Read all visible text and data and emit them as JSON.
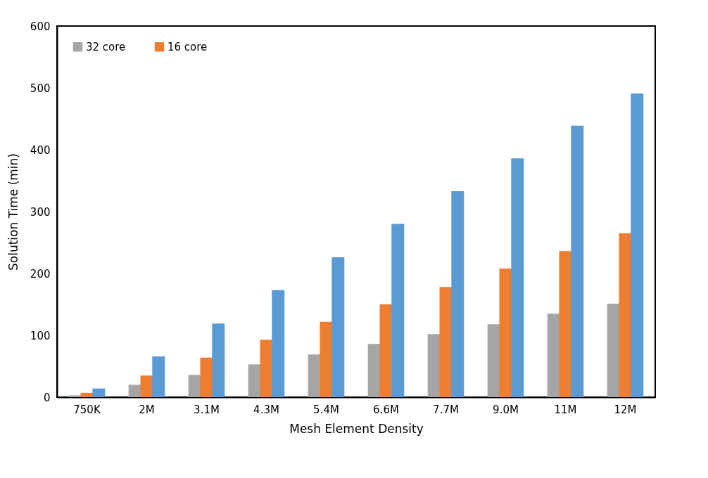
{
  "chart_data": {
    "type": "bar",
    "xlabel": "Mesh Element Density",
    "ylabel": "Solution Time (min)",
    "categories": [
      "750K",
      "2M",
      "3.1M",
      "4.3M",
      "5.4M",
      "6.6M",
      "7.7M",
      "9.0M",
      "11M",
      "12M"
    ],
    "series": [
      {
        "name": "32 core",
        "color": "#a5a5a5",
        "values": [
          3,
          20,
          36,
          53,
          69,
          86,
          102,
          118,
          135,
          151
        ]
      },
      {
        "name": "16 core",
        "color": "#ed7d31",
        "values": [
          7,
          35,
          64,
          93,
          122,
          150,
          178,
          208,
          236,
          265
        ]
      },
      {
        "color": "#5b9bd5",
        "values": [
          14,
          66,
          119,
          173,
          226,
          280,
          333,
          386,
          439,
          491
        ]
      }
    ],
    "ylim": [
      0,
      600
    ],
    "yticks": [
      0,
      100,
      200,
      300,
      400,
      500,
      600
    ],
    "grid": false,
    "legend": "top left"
  }
}
